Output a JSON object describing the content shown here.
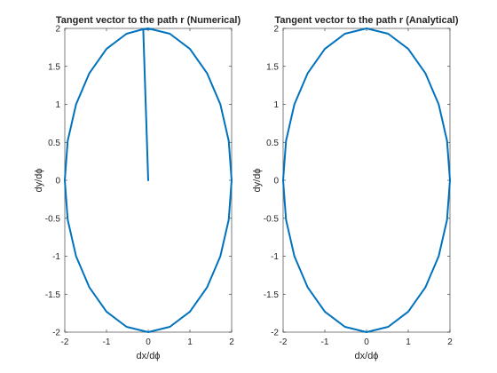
{
  "chart_data": [
    {
      "type": "line",
      "title": "Tangent vector to the path r (Numerical)",
      "xlabel": "dx/dϕ",
      "ylabel": "dy/dϕ",
      "xlim": [
        -2,
        2
      ],
      "ylim": [
        -2,
        2
      ],
      "xticks": [
        "-2",
        "-1",
        "0",
        "1",
        "2"
      ],
      "yticks": [
        "-2",
        "-1.5",
        "-1",
        "-0.5",
        "0",
        "0.5",
        "1",
        "1.5",
        "2"
      ],
      "grid": false,
      "series": [
        {
          "color": "#0072bd",
          "x": [
            0,
            -0.12,
            0.0,
            0.52,
            1.0,
            1.41,
            1.73,
            1.93,
            2.0,
            1.93,
            1.73,
            1.41,
            1.0,
            0.52,
            0.0,
            -0.52,
            -1.0,
            -1.41,
            -1.73,
            -1.93,
            -2.0,
            -1.93,
            -1.73,
            -1.41,
            -1.0,
            -0.52,
            -0.12,
            0.12
          ],
          "y": [
            0,
            1.99,
            2.0,
            1.93,
            1.73,
            1.41,
            1.0,
            0.52,
            0.0,
            -0.52,
            -1.0,
            -1.41,
            -1.73,
            -1.93,
            -2.0,
            -1.93,
            -1.73,
            -1.41,
            -1.0,
            -0.52,
            0.0,
            0.52,
            1.0,
            1.41,
            1.73,
            1.93,
            1.99,
            1.99
          ]
        }
      ]
    },
    {
      "type": "line",
      "title": "Tangent vector to the path r (Analytical)",
      "xlabel": "dx/dϕ",
      "ylabel": "dy/dϕ",
      "xlim": [
        -2,
        2
      ],
      "ylim": [
        -2,
        2
      ],
      "xticks": [
        "-2",
        "-1",
        "0",
        "1",
        "2"
      ],
      "yticks": [
        "-2",
        "-1.5",
        "-1",
        "-0.5",
        "0",
        "0.5",
        "1",
        "1.5",
        "2"
      ],
      "grid": false,
      "series": [
        {
          "color": "#0072bd",
          "x": [
            2.0,
            1.93,
            1.73,
            1.41,
            1.0,
            0.52,
            0.0,
            -0.52,
            -1.0,
            -1.41,
            -1.73,
            -1.93,
            -2.0,
            -1.93,
            -1.73,
            -1.41,
            -1.0,
            -0.52,
            0.0,
            0.52,
            1.0,
            1.41,
            1.73,
            1.93,
            2.0
          ],
          "y": [
            0.0,
            0.52,
            1.0,
            1.41,
            1.73,
            1.93,
            2.0,
            1.93,
            1.73,
            1.41,
            1.0,
            0.52,
            0.0,
            -0.52,
            -1.0,
            -1.41,
            -1.73,
            -1.93,
            -2.0,
            -1.93,
            -1.73,
            -1.41,
            -1.0,
            -0.52,
            0.0
          ]
        }
      ]
    }
  ]
}
